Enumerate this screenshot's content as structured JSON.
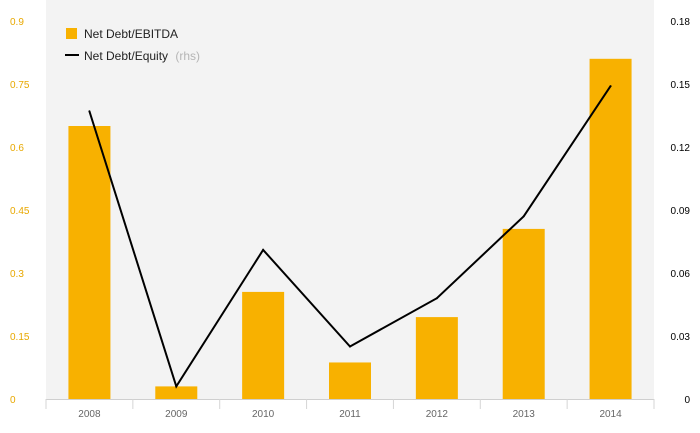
{
  "chart_data": {
    "type": "bar",
    "categories": [
      "2008",
      "2009",
      "2010",
      "2011",
      "2012",
      "2013",
      "2014"
    ],
    "series": [
      {
        "name": "Net Debt/EBITDA",
        "type": "bar",
        "axis": "left",
        "color": "#F8B100",
        "values": [
          0.65,
          0.03,
          0.255,
          0.087,
          0.195,
          0.405,
          0.81
        ]
      },
      {
        "name": "Net Debt/Equity",
        "name_suffix": "(rhs)",
        "type": "line",
        "axis": "right",
        "color": "#000000",
        "values": [
          0.137,
          0.006,
          0.071,
          0.025,
          0.048,
          0.087,
          0.149
        ]
      }
    ],
    "y_left": {
      "ticks": [
        "0",
        "0.15",
        "0.3",
        "0.45",
        "0.6",
        "0.75",
        "0.9"
      ],
      "range": [
        0,
        0.9
      ],
      "tick_color": "#E8A800"
    },
    "y_right": {
      "ticks": [
        "0",
        "0.03",
        "0.06",
        "0.09",
        "0.12",
        "0.15",
        "0.18"
      ],
      "range": [
        0,
        0.18
      ],
      "tick_color": "#000000"
    },
    "legend_position": "top-left",
    "background": "#F3F3F3",
    "grid": false
  }
}
